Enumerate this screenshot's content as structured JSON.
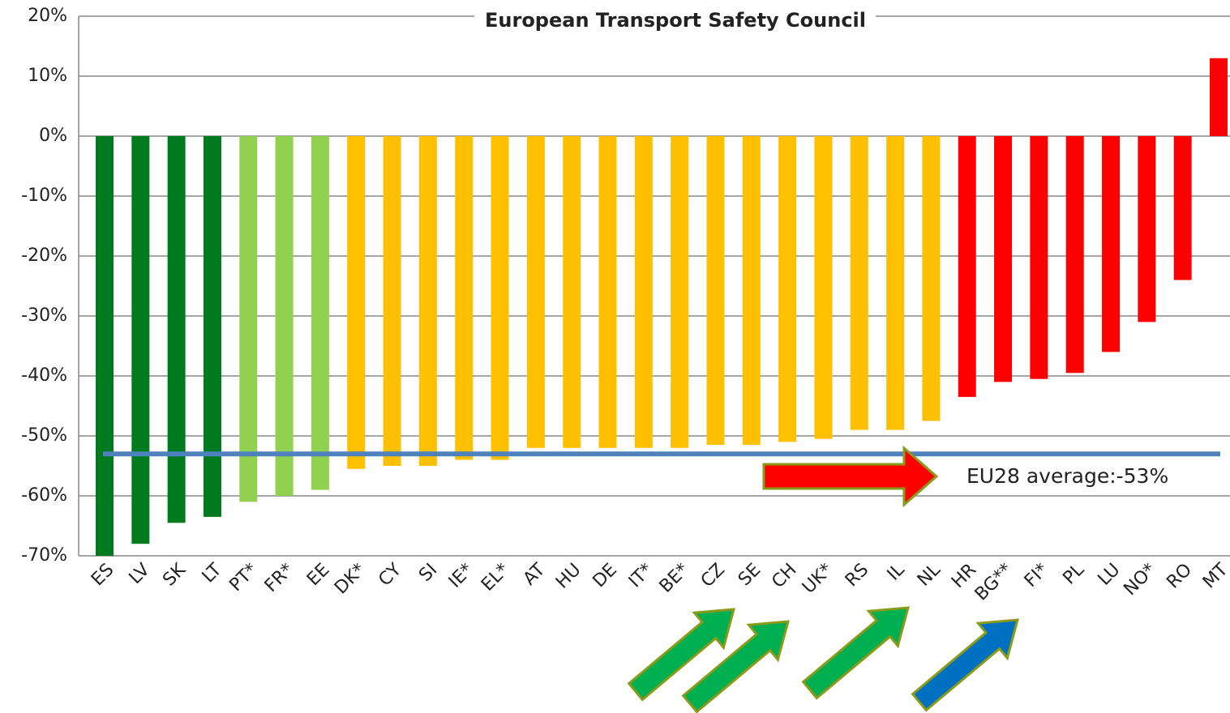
{
  "chart_data": {
    "type": "bar",
    "title": "European Transport Safety Council",
    "categories": [
      "ES",
      "LV",
      "SK",
      "LT",
      "PT*",
      "FR*",
      "EE",
      "DK*",
      "CY",
      "SI",
      "IE*",
      "EL*",
      "AT",
      "HU",
      "DE",
      "IT*",
      "BE*",
      "CZ",
      "SE",
      "CH",
      "UK*",
      "RS",
      "IL",
      "NL",
      "HR",
      "BG**",
      "FI*",
      "PL",
      "LU",
      "NO*",
      "RO",
      "MT"
    ],
    "values": [
      -70,
      -68,
      -64.5,
      -63.5,
      -61,
      -60,
      -59,
      -55.5,
      -55,
      -55,
      -54,
      -54,
      -52,
      -52,
      -52,
      -52,
      -52,
      -51.5,
      -51.5,
      -51,
      -50.5,
      -49,
      -49,
      -47.5,
      -43.5,
      -41,
      -40.5,
      -39.5,
      -36,
      -31,
      -24,
      13
    ],
    "colors": [
      "#007a1e",
      "#007a1e",
      "#007a1e",
      "#007a1e",
      "#92d050",
      "#92d050",
      "#92d050",
      "#ffc000",
      "#ffc000",
      "#ffc000",
      "#ffc000",
      "#ffc000",
      "#ffc000",
      "#ffc000",
      "#ffc000",
      "#ffc000",
      "#ffc000",
      "#ffc000",
      "#ffc000",
      "#ffc000",
      "#ffc000",
      "#ffc000",
      "#ffc000",
      "#ffc000",
      "#ff0000",
      "#ff0000",
      "#ff0000",
      "#ff0000",
      "#ff0000",
      "#ff0000",
      "#ff0000",
      "#ff0000"
    ],
    "ylim": [
      -70,
      20
    ],
    "yticks": [
      {
        "value": -70,
        "label": "-70%"
      },
      {
        "value": -60,
        "label": "-60%"
      },
      {
        "value": -50,
        "label": "-50%"
      },
      {
        "value": -40,
        "label": "-40%"
      },
      {
        "value": -30,
        "label": "-30%"
      },
      {
        "value": -20,
        "label": "-20%"
      },
      {
        "value": -10,
        "label": "-10%"
      },
      {
        "value": 0,
        "label": "0%"
      },
      {
        "value": 10,
        "label": "10%"
      },
      {
        "value": 20,
        "label": "20%"
      }
    ],
    "grid": true,
    "average": {
      "value": -53,
      "label": "EU28 average:-53%",
      "color": "#4f81bd"
    }
  }
}
